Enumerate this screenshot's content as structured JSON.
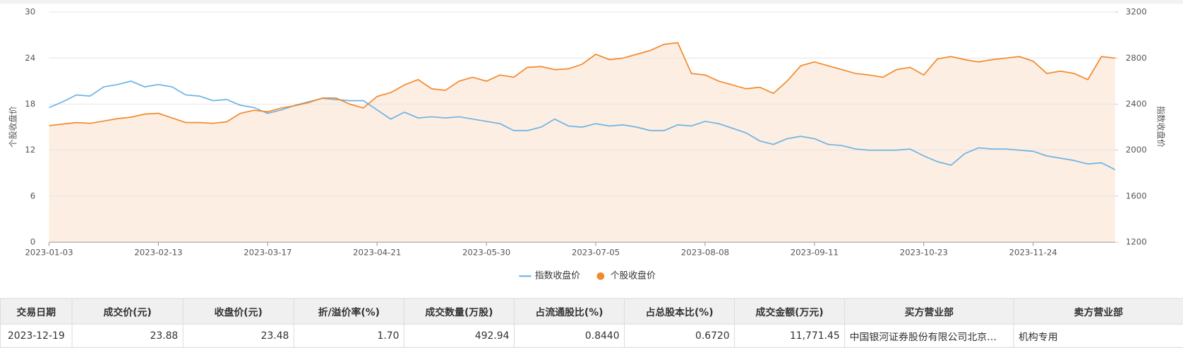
{
  "chart_data": {
    "type": "line",
    "y_label": "个股收盘价",
    "y2_label": "指数收盘价",
    "categories": [
      "2023-01-03",
      null,
      null,
      null,
      null,
      null,
      null,
      null,
      "2023-02-13",
      null,
      null,
      null,
      null,
      null,
      null,
      null,
      "2023-03-17",
      null,
      null,
      null,
      null,
      null,
      null,
      null,
      "2023-04-21",
      null,
      null,
      null,
      null,
      null,
      null,
      null,
      "2023-05-30",
      null,
      null,
      null,
      null,
      null,
      null,
      null,
      "2023-07-05",
      null,
      null,
      null,
      null,
      null,
      null,
      null,
      "2023-08-08",
      null,
      null,
      null,
      null,
      null,
      null,
      null,
      "2023-09-11",
      null,
      null,
      null,
      null,
      null,
      null,
      null,
      "2023-10-23",
      null,
      null,
      null,
      null,
      null,
      null,
      null,
      "2023-11-24",
      null,
      null,
      null,
      null,
      null,
      null
    ],
    "series": [
      {
        "name": "指数收盘价",
        "color": "#6cb4e4",
        "axis": "y2",
        "values": [
          2370,
          2420,
          2480,
          2470,
          2550,
          2570,
          2600,
          2550,
          2570,
          2550,
          2480,
          2470,
          2430,
          2440,
          2390,
          2370,
          2320,
          2350,
          2390,
          2420,
          2450,
          2440,
          2430,
          2430,
          2350,
          2270,
          2330,
          2280,
          2290,
          2280,
          2290,
          2270,
          2250,
          2230,
          2170,
          2170,
          2200,
          2270,
          2210,
          2200,
          2230,
          2210,
          2220,
          2200,
          2170,
          2170,
          2220,
          2210,
          2250,
          2230,
          2190,
          2150,
          2080,
          2050,
          2100,
          2120,
          2100,
          2050,
          2040,
          2010,
          2000,
          2000,
          2000,
          2010,
          1950,
          1900,
          1870,
          1970,
          2020,
          2010,
          2010,
          2000,
          1990,
          1950,
          1930,
          1910,
          1880,
          1890,
          1830
        ]
      },
      {
        "name": "个股收盘价",
        "color": "#f28a2c",
        "area_color": "#fdeee3",
        "values": [
          15.2,
          15.4,
          15.6,
          15.5,
          15.8,
          16.1,
          16.3,
          16.7,
          16.8,
          16.2,
          15.6,
          15.6,
          15.5,
          15.7,
          16.8,
          17.2,
          17.0,
          17.5,
          17.8,
          18.2,
          18.8,
          18.8,
          18.0,
          17.5,
          19.0,
          19.5,
          20.5,
          21.2,
          20.0,
          19.8,
          21.0,
          21.5,
          21.0,
          21.8,
          21.5,
          22.8,
          22.9,
          22.5,
          22.6,
          23.2,
          24.5,
          23.8,
          24.0,
          24.5,
          25.0,
          25.8,
          26.0,
          22.0,
          21.8,
          21.0,
          20.5,
          20.0,
          20.2,
          19.4,
          21.0,
          23.0,
          23.5,
          23.0,
          22.5,
          22.0,
          21.8,
          21.5,
          22.5,
          22.8,
          21.8,
          23.9,
          24.2,
          23.8,
          23.5,
          23.8,
          24.0,
          24.2,
          23.6,
          22.0,
          22.3,
          22.0,
          21.2,
          24.2,
          24.0
        ]
      }
    ],
    "ylim": [
      0,
      30
    ],
    "yticks": [
      0,
      6,
      12,
      18,
      24,
      30
    ],
    "y2lim": [
      1200,
      3200
    ],
    "y2ticks": [
      1200,
      1600,
      2000,
      2400,
      2800,
      3200
    ],
    "grid": true,
    "legend": "bottom"
  },
  "table": {
    "headers": [
      "交易日期",
      "成交价(元)",
      "收盘价(元)",
      "折/溢价率(%)",
      "成交数量(万股)",
      "占流通股比(%)",
      "占总股本比(%)",
      "成交金额(万元)",
      "买方营业部",
      "卖方营业部"
    ],
    "rows": [
      [
        "2023-12-19",
        "23.88",
        "23.48",
        "1.70",
        "492.94",
        "0.8440",
        "0.6720",
        "11,771.45",
        "中国银河证券股份有限公司北京…",
        "机构专用"
      ]
    ]
  }
}
